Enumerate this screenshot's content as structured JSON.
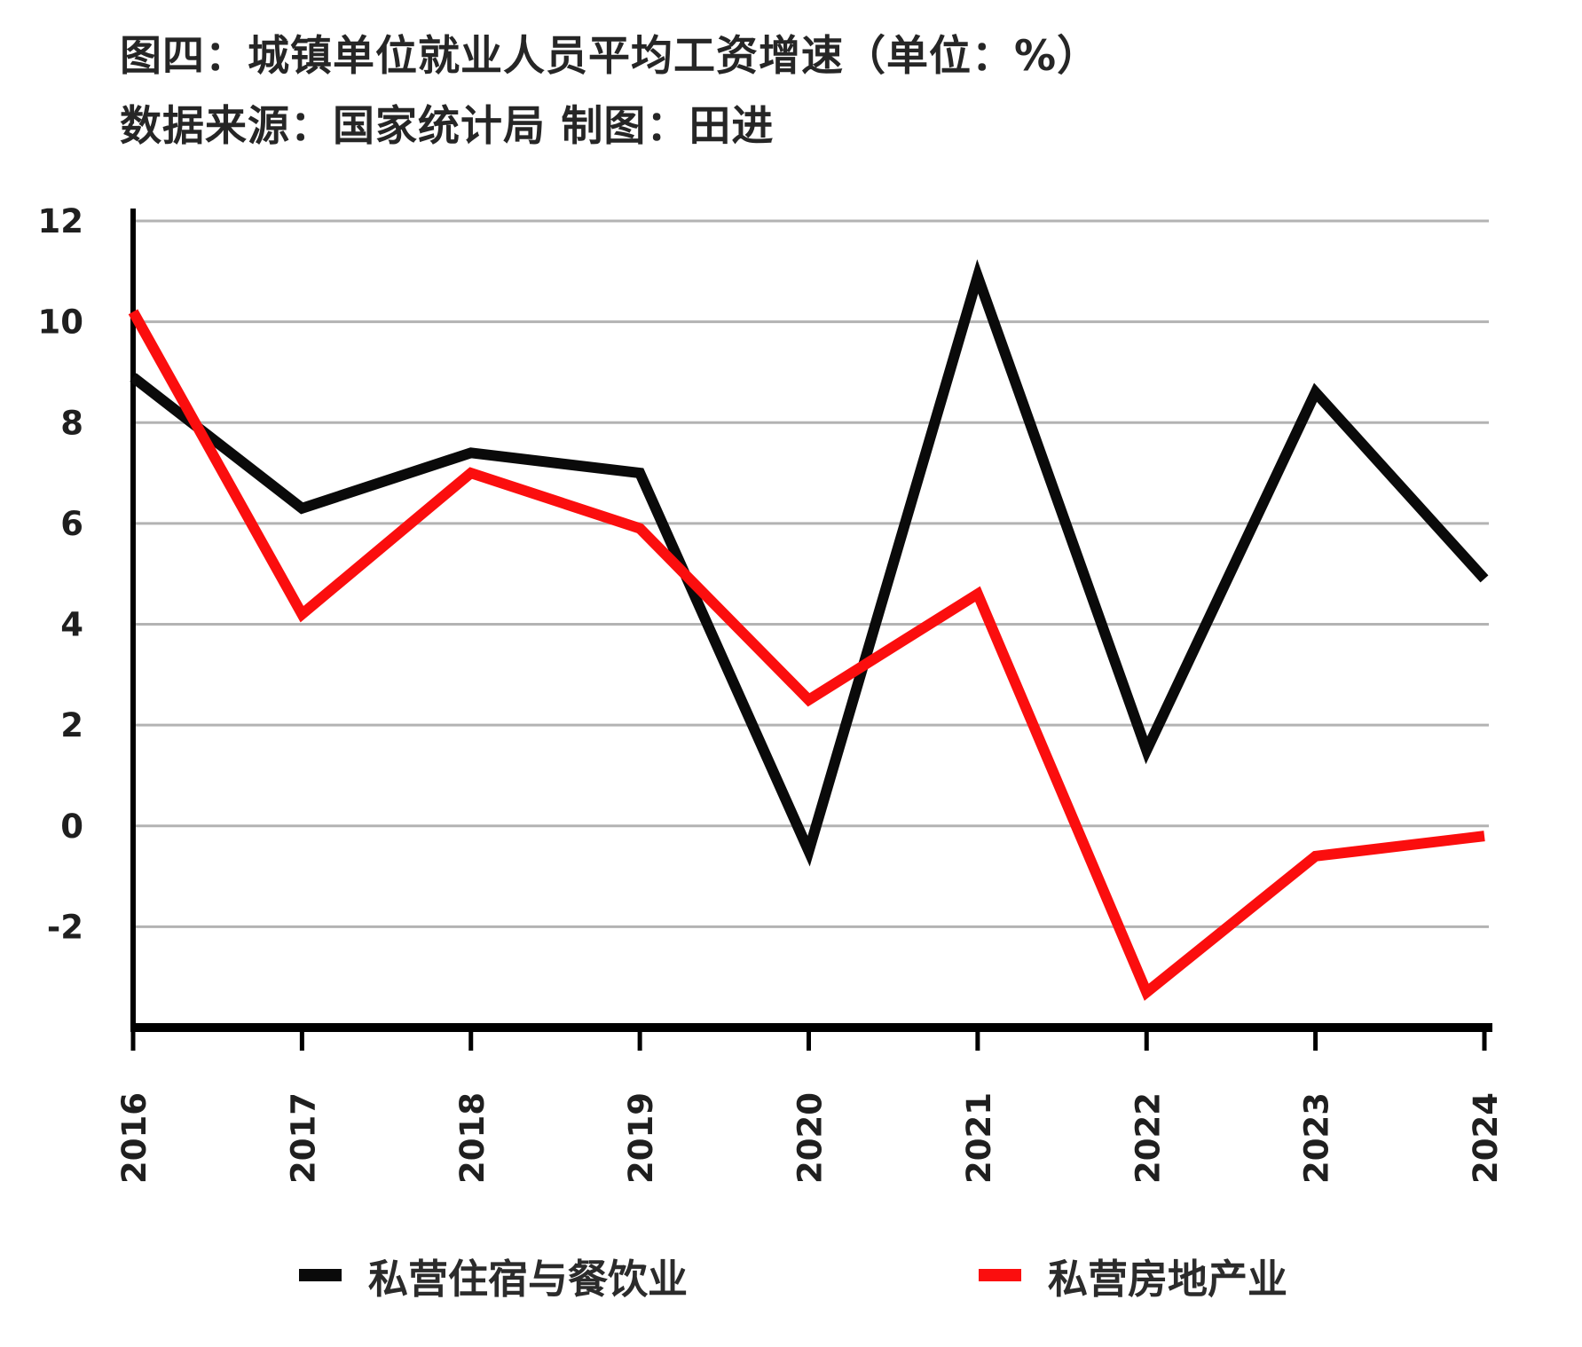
{
  "header": {
    "title": "图四：城镇单位就业人员平均工资增速（单位：%）",
    "source_line": "数据来源：国家统计局 制图：田进"
  },
  "chart_data": {
    "type": "line",
    "x_labels": [
      "2016",
      "2017",
      "2018",
      "2019",
      "2020",
      "2021",
      "2022",
      "2023",
      "2024"
    ],
    "series": [
      {
        "name": "私营住宿与餐饮业",
        "color": "#0a0a0a",
        "values": [
          8.9,
          6.3,
          7.4,
          7.0,
          -0.5,
          10.9,
          1.5,
          8.6,
          4.9
        ]
      },
      {
        "name": "私营房地产业",
        "color": "#fb0e0e",
        "values": [
          10.2,
          4.2,
          7.0,
          5.9,
          2.5,
          4.6,
          -3.3,
          -0.6,
          -0.2
        ]
      }
    ],
    "y_ticks": [
      12,
      10,
      8,
      6,
      4,
      2,
      0,
      -2
    ],
    "ylim": [
      -4,
      12
    ],
    "grid": true,
    "gridline_color": "#b3b3b3",
    "axis_color": "#000000",
    "legend_position": "bottom"
  }
}
